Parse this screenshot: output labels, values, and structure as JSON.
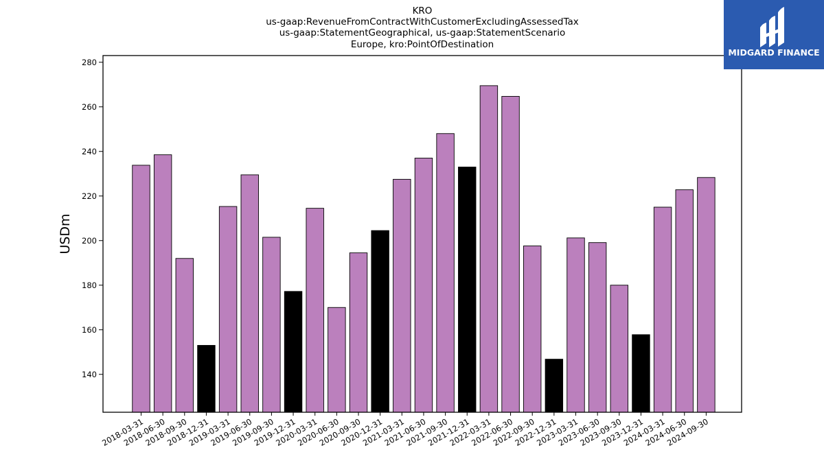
{
  "chart_data": {
    "type": "bar",
    "title_lines": [
      "KRO",
      "us-gaap:RevenueFromContractWithCustomerExcludingAssessedTax",
      "us-gaap:StatementGeographical, us-gaap:StatementScenario",
      "Europe, kro:PointOfDestination"
    ],
    "xlabel": "",
    "ylabel": "USDm",
    "ylim": [
      123,
      283
    ],
    "yticks": [
      140,
      160,
      180,
      200,
      220,
      240,
      260,
      280
    ],
    "categories": [
      "2018-03-31",
      "2018-06-30",
      "2018-09-30",
      "2018-12-31",
      "2019-03-31",
      "2019-06-30",
      "2019-09-30",
      "2019-12-31",
      "2020-03-31",
      "2020-06-30",
      "2020-09-30",
      "2020-12-31",
      "2021-03-31",
      "2021-06-30",
      "2021-09-30",
      "2021-12-31",
      "2022-03-31",
      "2022-06-30",
      "2022-09-30",
      "2022-12-31",
      "2023-03-31",
      "2023-06-30",
      "2023-09-30",
      "2023-12-31",
      "2024-03-31",
      "2024-06-30",
      "2024-09-30"
    ],
    "values": [
      233.8,
      238.5,
      192.0,
      153.0,
      215.3,
      229.5,
      201.5,
      177.2,
      214.5,
      170.0,
      194.5,
      204.5,
      227.5,
      237.0,
      248.0,
      233.0,
      269.5,
      264.7,
      197.6,
      146.8,
      201.2,
      199.1,
      180.0,
      157.8,
      215.0,
      222.8,
      228.3
    ],
    "bar_colors": [
      "#bb80bd",
      "#bb80bd",
      "#bb80bd",
      "#000000",
      "#bb80bd",
      "#bb80bd",
      "#bb80bd",
      "#000000",
      "#bb80bd",
      "#bb80bd",
      "#bb80bd",
      "#000000",
      "#bb80bd",
      "#bb80bd",
      "#bb80bd",
      "#000000",
      "#bb80bd",
      "#bb80bd",
      "#bb80bd",
      "#000000",
      "#bb80bd",
      "#bb80bd",
      "#bb80bd",
      "#000000",
      "#bb80bd",
      "#bb80bd",
      "#bb80bd"
    ],
    "grid": false,
    "legend": "none"
  },
  "logo": {
    "text": "MIDGARD FINANCE",
    "background": "#2b5bb0"
  },
  "colors": {
    "quarter_bar": "#bb80bd",
    "year_end_bar": "#000000",
    "bar_edge": "#000000"
  }
}
